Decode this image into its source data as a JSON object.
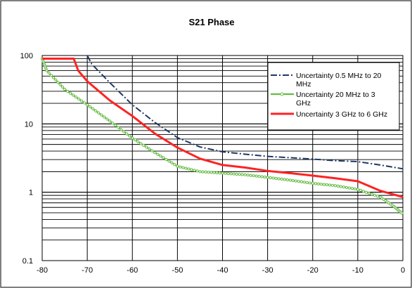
{
  "chart_data": {
    "type": "line",
    "title": "S21 Phase",
    "xlabel": "",
    "ylabel": "",
    "xlim": [
      -80,
      0
    ],
    "ylim": [
      0.1,
      100
    ],
    "yscale": "log",
    "grid": true,
    "legend_position": "top-right",
    "x_ticks": [
      "-80",
      "-70",
      "-60",
      "-50",
      "-40",
      "-30",
      "-20",
      "-10",
      "0"
    ],
    "y_ticks": [
      "0.1",
      "1",
      "10",
      "100"
    ],
    "series": [
      {
        "name": "Uncertainty 0.5 MHz to 20 MHz",
        "legend_lines": [
          "Uncertainty 0.5 MHz to 20",
          "MHz"
        ],
        "color": "#1f3864",
        "style": "dashdot",
        "x": [
          -70,
          -69,
          -65,
          -60,
          -55,
          -50,
          -45,
          -40,
          -35,
          -30,
          -25,
          -20,
          -15,
          -10,
          -5,
          0
        ],
        "y": [
          100,
          75,
          40,
          19,
          10.5,
          6.3,
          4.6,
          3.9,
          3.6,
          3.35,
          3.2,
          3.05,
          2.9,
          2.8,
          2.5,
          2.2
        ]
      },
      {
        "name": "Uncertainty 20 MHz to 3 GHz",
        "legend_lines": [
          "Uncertainty 20 MHz to  3",
          "GHz"
        ],
        "color": "#66bb44",
        "style": "solid-markers",
        "x": [
          -80,
          -79,
          -75,
          -70,
          -65,
          -60,
          -55,
          -50,
          -45,
          -40,
          -35,
          -30,
          -25,
          -20,
          -15,
          -10,
          -5,
          -2,
          0
        ],
        "y": [
          90,
          60,
          32,
          19,
          11,
          6.2,
          3.8,
          2.4,
          2.0,
          1.9,
          1.8,
          1.65,
          1.5,
          1.35,
          1.25,
          1.1,
          0.85,
          0.62,
          0.48
        ]
      },
      {
        "name": "Uncertainty 3 GHz to 6 GHz",
        "legend_lines": [
          "Uncertainty 3 GHz to 6 GHz"
        ],
        "color": "#ff2222",
        "style": "solid",
        "x": [
          -80,
          -73,
          -72,
          -70,
          -65,
          -60,
          -55,
          -50,
          -45,
          -40,
          -35,
          -30,
          -25,
          -20,
          -15,
          -10,
          -5,
          0
        ],
        "y": [
          90,
          90,
          60,
          42,
          22,
          13,
          7.2,
          4.5,
          3.1,
          2.5,
          2.3,
          2.05,
          1.9,
          1.75,
          1.6,
          1.45,
          1.05,
          0.85
        ]
      }
    ]
  }
}
